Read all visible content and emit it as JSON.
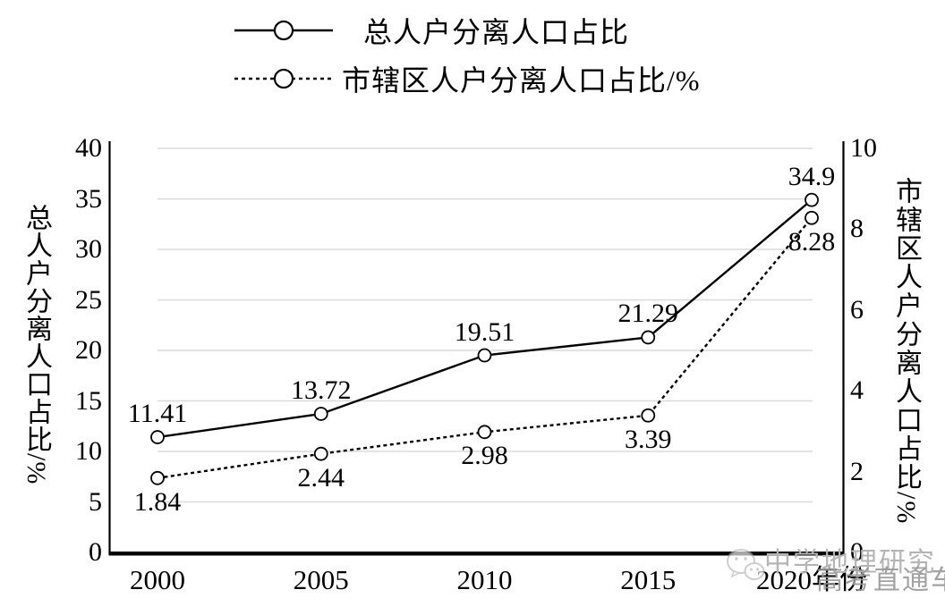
{
  "legend": {
    "position": "top",
    "items": [
      {
        "label": "总人户分离人口占比",
        "line_style": "solid",
        "marker": "circle"
      },
      {
        "label": "市辖区人户分离人口占比/%",
        "line_style": "dotted",
        "marker": "circle"
      }
    ]
  },
  "chart_data": {
    "type": "line",
    "title": "",
    "categories": [
      "2000",
      "2005",
      "2010",
      "2015",
      "2020"
    ],
    "x_tick_labels": [
      "2000",
      "2005",
      "2010",
      "2015",
      "2020年份"
    ],
    "series": [
      {
        "name": "总人户分离人口占比",
        "axis": "left",
        "style": "solid",
        "marker": "circle",
        "values": [
          11.41,
          13.72,
          19.51,
          21.29,
          34.9
        ],
        "point_labels": [
          "11.41",
          "13.72",
          "19.51",
          "21.29",
          "34.9"
        ],
        "label_position": "above"
      },
      {
        "name": "市辖区人户分离人口占比/%",
        "axis": "right",
        "style": "dotted",
        "marker": "circle",
        "values": [
          1.84,
          2.44,
          2.98,
          3.39,
          8.28
        ],
        "point_labels": [
          "1.84",
          "2.44",
          "2.98",
          "3.39",
          "8.28"
        ],
        "label_position": "below"
      }
    ],
    "left_axis": {
      "title": "总人户分离人口占比/%",
      "min": 0,
      "max": 40,
      "ticks": [
        0,
        5,
        10,
        15,
        20,
        25,
        30,
        35,
        40
      ]
    },
    "right_axis": {
      "title": "市辖区人户分离人口占比/%",
      "min": 0,
      "max": 10,
      "ticks": [
        0,
        2,
        4,
        6,
        8,
        10
      ]
    },
    "grid": "horizontal"
  },
  "watermark": {
    "icon": "wechat-icon",
    "line1": "中学地理研究",
    "line2": "高考直通车"
  },
  "colors": {
    "line": "#000000",
    "grid": "#dadada",
    "background": "#ffffff",
    "watermark": "#b4b4b4",
    "watermark_dark": "#989898"
  }
}
